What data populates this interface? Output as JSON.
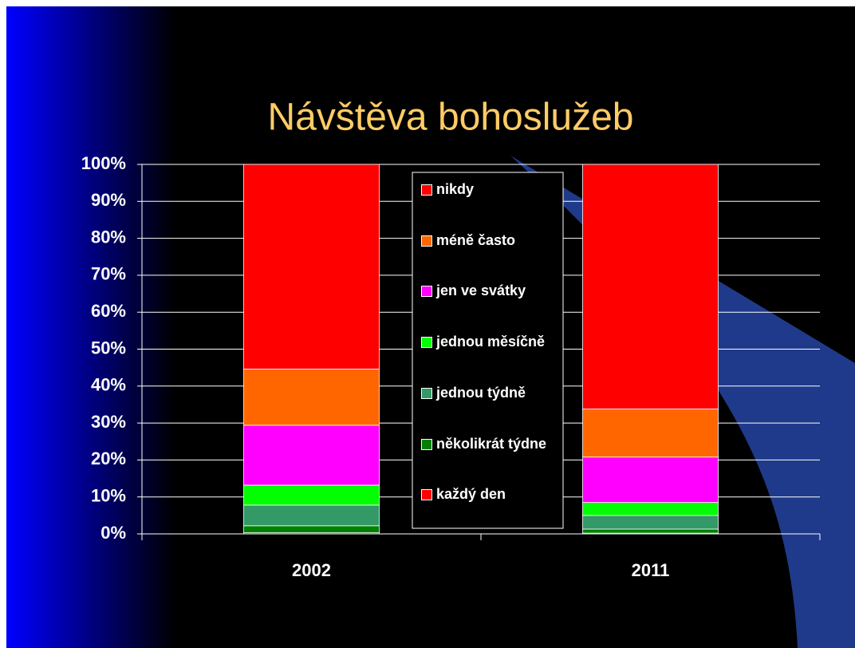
{
  "chart_data": {
    "type": "stacked-bar",
    "title": "Návštěva bohoslužeb",
    "categories": [
      "2002",
      "2011"
    ],
    "series": [
      {
        "name": "každý den",
        "color": "#ff0000",
        "values": [
          0.3,
          0.2
        ]
      },
      {
        "name": "několikrát týdne",
        "color": "#008000",
        "values": [
          1.9,
          1.1
        ]
      },
      {
        "name": "jednou týdně",
        "color": "#339966",
        "values": [
          5.6,
          3.7
        ]
      },
      {
        "name": "jednou měsíčně",
        "color": "#00ff00",
        "values": [
          5.4,
          3.5
        ]
      },
      {
        "name": "jen ve svátky",
        "color": "#ff00ff",
        "values": [
          16.2,
          12.3
        ]
      },
      {
        "name": "méně často",
        "color": "#ff6600",
        "values": [
          15.2,
          13.0
        ]
      },
      {
        "name": "nikdy",
        "color": "#ff0000",
        "values": [
          55.4,
          66.2
        ]
      }
    ],
    "ylim": [
      0,
      100
    ],
    "yticks": [
      {
        "value": 0,
        "label": "0%"
      },
      {
        "value": 10,
        "label": "10%"
      },
      {
        "value": 20,
        "label": "20%"
      },
      {
        "value": 30,
        "label": "30%"
      },
      {
        "value": 40,
        "label": "40%"
      },
      {
        "value": 50,
        "label": "50%"
      },
      {
        "value": 60,
        "label": "60%"
      },
      {
        "value": 70,
        "label": "70%"
      },
      {
        "value": 80,
        "label": "80%"
      },
      {
        "value": 90,
        "label": "90%"
      },
      {
        "value": 100,
        "label": "100%"
      }
    ],
    "grid": true
  }
}
